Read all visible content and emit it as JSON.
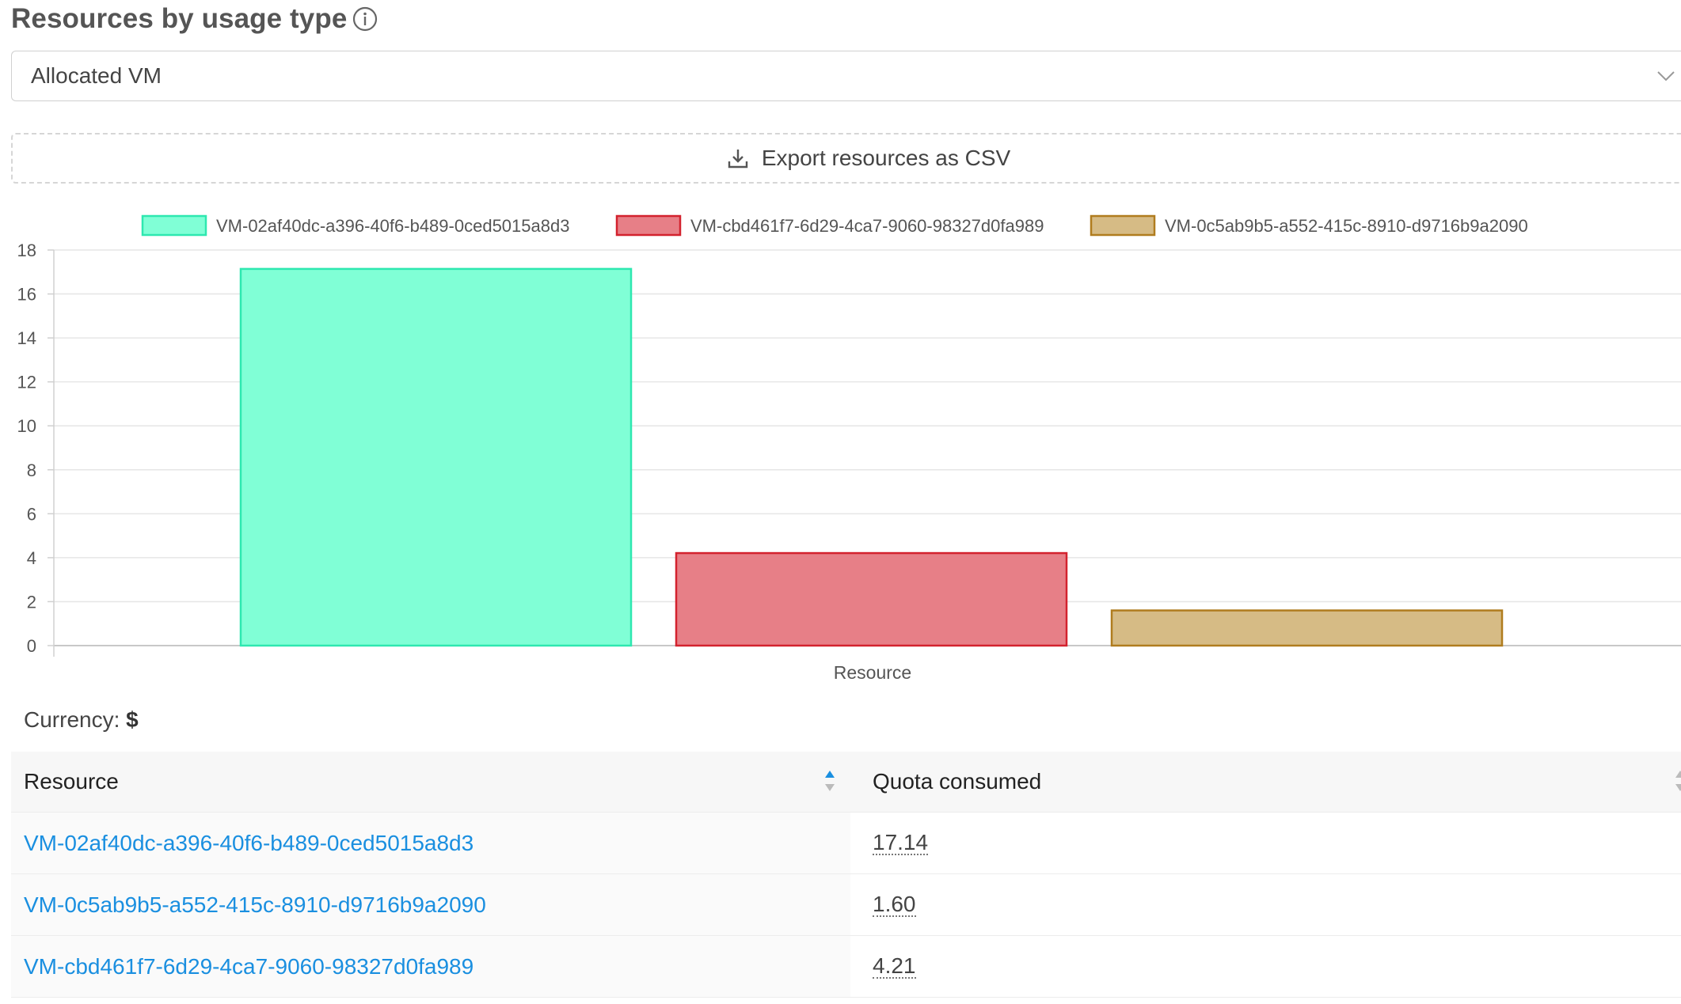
{
  "header": {
    "title": "Resources by usage type",
    "info_icon": "info-circle-icon"
  },
  "usage_type_select": {
    "selected": "Allocated VM",
    "icon": "chevron-down-icon"
  },
  "export_button": {
    "label": "Export resources as CSV",
    "icon": "download-icon"
  },
  "chart_data": {
    "type": "bar",
    "xlabel": "Resource",
    "ylabel": "",
    "ylim": [
      0,
      18
    ],
    "yticks": [
      "0",
      "2",
      "4",
      "6",
      "8",
      "10",
      "12",
      "14",
      "16",
      "18"
    ],
    "grid": true,
    "legend_position": "top",
    "series": [
      {
        "name": "VM-02af40dc-a396-40f6-b489-0ced5015a8d3",
        "value": 17.14,
        "fill": "#80ffd6",
        "stroke": "#2ee8b0"
      },
      {
        "name": "VM-cbd461f7-6d29-4ca7-9060-98327d0fa989",
        "value": 4.21,
        "fill": "#e77f87",
        "stroke": "#d3222e"
      },
      {
        "name": "VM-0c5ab9b5-a552-415c-8910-d9716b9a2090",
        "value": 1.6,
        "fill": "#d6bb85",
        "stroke": "#b07c1e"
      }
    ]
  },
  "currency": {
    "label": "Currency:",
    "value": "$"
  },
  "table": {
    "columns": [
      "Resource",
      "Quota consumed"
    ],
    "rows": [
      {
        "resource": "VM-02af40dc-a396-40f6-b489-0ced5015a8d3",
        "quota": "17.14"
      },
      {
        "resource": "VM-0c5ab9b5-a552-415c-8910-d9716b9a2090",
        "quota": "1.60"
      },
      {
        "resource": "VM-cbd461f7-6d29-4ca7-9060-98327d0fa989",
        "quota": "4.21"
      }
    ]
  }
}
